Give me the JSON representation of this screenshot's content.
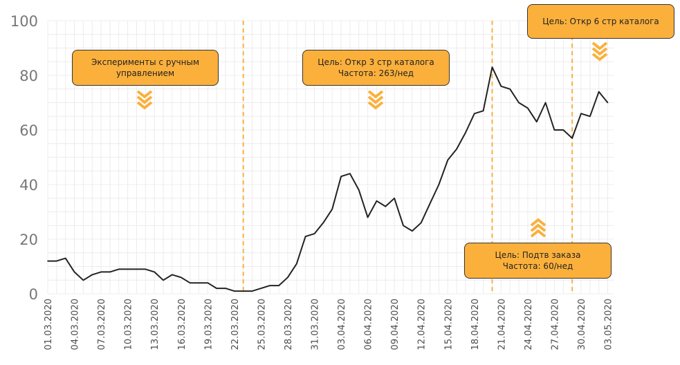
{
  "chart_data": {
    "type": "line",
    "title": "",
    "xlabel": "",
    "ylabel": "",
    "ylim": [
      0,
      100
    ],
    "yticks": [
      0,
      20,
      40,
      60,
      80,
      100
    ],
    "grid": true,
    "x_tick_labels": [
      "01.03.2020",
      "04.03.2020",
      "07.03.2020",
      "10.03.2020",
      "13.03.2020",
      "16.03.2020",
      "19.03.2020",
      "22.03.2020",
      "25.03.2020",
      "28.03.2020",
      "31.03.2020",
      "03.04.2020",
      "06.04.2020",
      "09.04.2020",
      "12.04.2020",
      "15.04.2020",
      "18.04.2020",
      "21.04.2020",
      "24.04.2020",
      "27.04.2020",
      "30.04.2020",
      "03.05.2020"
    ],
    "series": [
      {
        "color": "#222222",
        "x": [
          "01.03.2020",
          "02.03.2020",
          "03.03.2020",
          "04.03.2020",
          "05.03.2020",
          "06.03.2020",
          "07.03.2020",
          "08.03.2020",
          "09.03.2020",
          "10.03.2020",
          "11.03.2020",
          "12.03.2020",
          "13.03.2020",
          "14.03.2020",
          "15.03.2020",
          "16.03.2020",
          "17.03.2020",
          "18.03.2020",
          "19.03.2020",
          "20.03.2020",
          "21.03.2020",
          "22.03.2020",
          "23.03.2020",
          "24.03.2020",
          "25.03.2020",
          "26.03.2020",
          "27.03.2020",
          "28.03.2020",
          "29.03.2020",
          "30.03.2020",
          "31.03.2020",
          "01.04.2020",
          "02.04.2020",
          "03.04.2020",
          "04.04.2020",
          "05.04.2020",
          "06.04.2020",
          "07.04.2020",
          "08.04.2020",
          "09.04.2020",
          "10.04.2020",
          "11.04.2020",
          "12.04.2020",
          "13.04.2020",
          "14.04.2020",
          "15.04.2020",
          "16.04.2020",
          "17.04.2020",
          "18.04.2020",
          "19.04.2020",
          "20.04.2020",
          "21.04.2020",
          "22.04.2020",
          "23.04.2020",
          "24.04.2020",
          "25.04.2020",
          "26.04.2020",
          "27.04.2020",
          "28.04.2020",
          "29.04.2020",
          "30.04.2020",
          "01.05.2020",
          "02.05.2020",
          "03.05.2020"
        ],
        "values": [
          12,
          12,
          13,
          8,
          5,
          7,
          8,
          8,
          9,
          9,
          9,
          9,
          8,
          5,
          7,
          6,
          4,
          4,
          4,
          2,
          2,
          1,
          1,
          1,
          2,
          3,
          3,
          6,
          11,
          21,
          22,
          26,
          31,
          43,
          44,
          38,
          28,
          34,
          32,
          35,
          25,
          23,
          26,
          33,
          40,
          49,
          53,
          59,
          66,
          67,
          83,
          76,
          75,
          70,
          68,
          63,
          70,
          60,
          60,
          57,
          66,
          65,
          74,
          70
        ]
      }
    ],
    "event_lines": [
      "23.03.2020",
      "20.04.2020",
      "29.04.2020"
    ],
    "annotations": [
      {
        "id": "manual",
        "lines": [
          "Эксперименты с ручным",
          "управлением"
        ],
        "arrow": "down"
      },
      {
        "id": "goal3",
        "lines": [
          "Цель: Откр 3 стр каталога",
          "Частота: 263/нед"
        ],
        "arrow": "down"
      },
      {
        "id": "goal6",
        "lines": [
          "Цель: Откр 6 стр каталога"
        ],
        "arrow": "down"
      },
      {
        "id": "order",
        "lines": [
          "Цель: Подтв заказа",
          "Частота: 60/нед"
        ],
        "arrow": "up"
      }
    ],
    "colors": {
      "line": "#222222",
      "accent": "#fbb03b",
      "grid": "#ececec",
      "event_line": "#fbb03b"
    }
  }
}
